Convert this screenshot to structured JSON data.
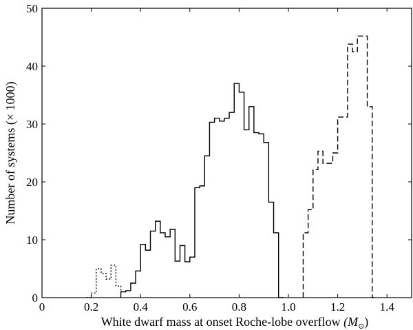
{
  "chart_data": {
    "type": "histogram",
    "xlabel": "White dwarf mass at onset Roche-lobe overflow",
    "xlabel_unit": "(M",
    "xlabel_unit_sub": "⊙",
    "xlabel_unit_close": ")",
    "ylabel": "Number of systems (× 1000)",
    "xlim": [
      0,
      1.5
    ],
    "ylim": [
      0,
      50
    ],
    "xticks": [
      0,
      0.2,
      0.4,
      0.6,
      0.8,
      1.0,
      1.2,
      1.4
    ],
    "xtick_labels": [
      "0",
      "0.2",
      "0.4",
      "0.6",
      "0.8",
      "1.0",
      "1.2",
      "1.4"
    ],
    "yticks": [
      0,
      10,
      20,
      30,
      40,
      50
    ],
    "ytick_labels": [
      "0",
      "10",
      "20",
      "30",
      "40",
      "50"
    ],
    "bin_width": 0.02,
    "grid": false,
    "legend": "none",
    "series": [
      {
        "style": "dotted",
        "bin_start": 0.18,
        "values": [
          0.0,
          0.8,
          5.0,
          4.2,
          3.2,
          5.6,
          2.0,
          1.0
        ]
      },
      {
        "style": "solid",
        "bin_start": 0.32,
        "values": [
          1.0,
          1.2,
          2.5,
          4.6,
          9.2,
          8.2,
          11.5,
          13.2,
          11.2,
          10.5,
          11.8,
          6.3,
          9.0,
          6.2,
          7.0,
          19.0,
          19.3,
          24.5,
          30.3,
          31.0,
          30.5,
          31.0,
          32.0,
          37.0,
          35.5,
          29.0,
          33.0,
          28.5,
          28.3,
          26.8,
          16.5,
          11.2,
          0.0
        ]
      },
      {
        "style": "dashed",
        "bin_start": 1.06,
        "values": [
          11.2,
          15.2,
          22.1,
          25.3,
          23.2,
          23.2,
          25.0,
          31.2,
          31.2,
          43.8,
          42.5,
          45.2,
          45.2,
          33.0,
          0.0
        ]
      }
    ]
  }
}
